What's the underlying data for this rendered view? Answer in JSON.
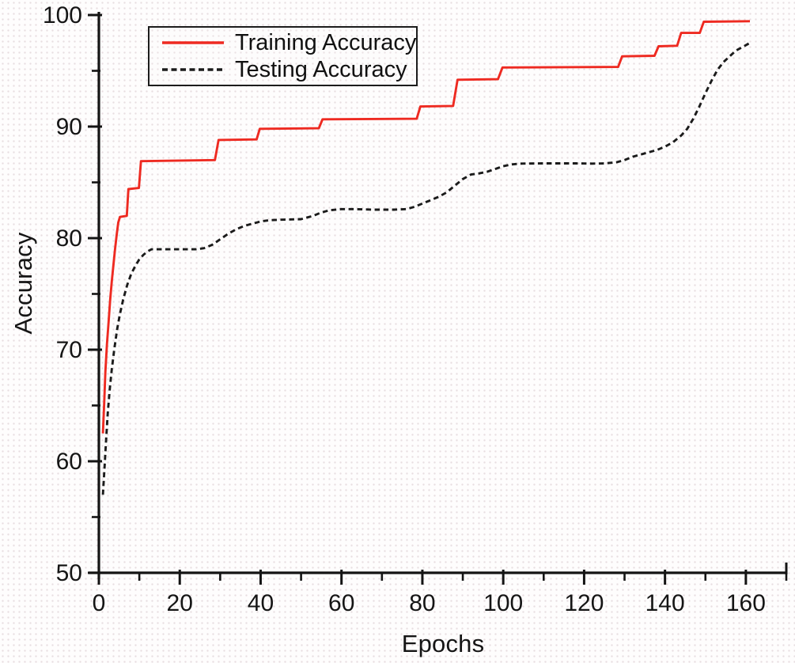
{
  "chart_data": {
    "type": "line",
    "title": "",
    "xlabel": "Epochs",
    "ylabel": "Accuracy",
    "xlim": [
      0,
      170
    ],
    "ylim": [
      50,
      100
    ],
    "grid": false,
    "x_major_ticks": [
      0,
      20,
      40,
      60,
      80,
      100,
      120,
      140,
      160
    ],
    "x_minor_ticks": [
      10,
      30,
      50,
      70,
      90,
      110,
      130,
      150,
      170
    ],
    "y_major_ticks": [
      50,
      60,
      70,
      80,
      90,
      100
    ],
    "y_minor_ticks": [
      55,
      65,
      75,
      85,
      95
    ],
    "axis_color": "#141414",
    "legend": {
      "position": "top-left",
      "items": [
        {
          "label": "Training Accuracy",
          "color": "#ee2a21",
          "style": "solid"
        },
        {
          "label": "Testing Accuracy",
          "color": "#1b1b1b",
          "style": "dashed"
        }
      ]
    },
    "series": [
      {
        "name": "Training Accuracy",
        "color": "#ee2a21",
        "style": "solid",
        "points": [
          [
            1,
            62.5
          ],
          [
            1.3,
            65
          ],
          [
            1.6,
            68
          ],
          [
            2,
            70.5
          ],
          [
            2.4,
            72.5
          ],
          [
            2.8,
            74.5
          ],
          [
            3.2,
            76.2
          ],
          [
            3.6,
            77.6
          ],
          [
            4,
            79
          ],
          [
            4.4,
            80.3
          ],
          [
            4.8,
            81.4
          ],
          [
            5.2,
            81.9
          ],
          [
            6.9,
            82
          ],
          [
            7.3,
            84.4
          ],
          [
            9.9,
            84.5
          ],
          [
            10.4,
            86.9
          ],
          [
            28.7,
            87
          ],
          [
            29.6,
            88.8
          ],
          [
            39,
            88.85
          ],
          [
            39.8,
            89.8
          ],
          [
            54.4,
            89.85
          ],
          [
            55.3,
            90.65
          ],
          [
            78.6,
            90.7
          ],
          [
            79.5,
            91.8
          ],
          [
            87.6,
            91.85
          ],
          [
            88.7,
            94.2
          ],
          [
            98.7,
            94.25
          ],
          [
            99.8,
            95.3
          ],
          [
            128.4,
            95.35
          ],
          [
            129.4,
            96.3
          ],
          [
            137.4,
            96.35
          ],
          [
            138.4,
            97.2
          ],
          [
            143,
            97.25
          ],
          [
            144,
            98.4
          ],
          [
            148.6,
            98.4
          ],
          [
            149.6,
            99.4
          ],
          [
            161,
            99.45
          ]
        ]
      },
      {
        "name": "Testing Accuracy",
        "color": "#1b1b1b",
        "style": "dashed",
        "points": [
          [
            1,
            57
          ],
          [
            1.4,
            59.5
          ],
          [
            1.8,
            62
          ],
          [
            2.2,
            64.3
          ],
          [
            2.7,
            66.5
          ],
          [
            3.2,
            68.3
          ],
          [
            3.8,
            70
          ],
          [
            4.5,
            71.8
          ],
          [
            5.2,
            73.2
          ],
          [
            6,
            74.5
          ],
          [
            7,
            75.8
          ],
          [
            8,
            76.8
          ],
          [
            9,
            77.5
          ],
          [
            10,
            78.1
          ],
          [
            11,
            78.5
          ],
          [
            12,
            78.8
          ],
          [
            13,
            79
          ],
          [
            24,
            79
          ],
          [
            26,
            79.1
          ],
          [
            28,
            79.4
          ],
          [
            30,
            79.9
          ],
          [
            32,
            80.4
          ],
          [
            34,
            80.8
          ],
          [
            36,
            81.1
          ],
          [
            38,
            81.3
          ],
          [
            40,
            81.5
          ],
          [
            42,
            81.6
          ],
          [
            45,
            81.65
          ],
          [
            50,
            81.7
          ],
          [
            53,
            82
          ],
          [
            55,
            82.3
          ],
          [
            57,
            82.5
          ],
          [
            60,
            82.6
          ],
          [
            63,
            82.6
          ],
          [
            68,
            82.55
          ],
          [
            73,
            82.55
          ],
          [
            76,
            82.6
          ],
          [
            78,
            82.8
          ],
          [
            80,
            83.1
          ],
          [
            82,
            83.4
          ],
          [
            84,
            83.7
          ],
          [
            86,
            84.1
          ],
          [
            88,
            84.7
          ],
          [
            90,
            85.3
          ],
          [
            92,
            85.7
          ],
          [
            94,
            85.8
          ],
          [
            96,
            85.95
          ],
          [
            98,
            86.2
          ],
          [
            100,
            86.45
          ],
          [
            102,
            86.6
          ],
          [
            104,
            86.68
          ],
          [
            110,
            86.7
          ],
          [
            118,
            86.7
          ],
          [
            122,
            86.68
          ],
          [
            125,
            86.7
          ],
          [
            128,
            86.8
          ],
          [
            130,
            87
          ],
          [
            132,
            87.3
          ],
          [
            134,
            87.5
          ],
          [
            136,
            87.7
          ],
          [
            138,
            87.9
          ],
          [
            140,
            88.2
          ],
          [
            142,
            88.6
          ],
          [
            144,
            89.2
          ],
          [
            145.5,
            89.8
          ],
          [
            147,
            90.7
          ],
          [
            148.5,
            91.8
          ],
          [
            150,
            93
          ],
          [
            151.5,
            94.1
          ],
          [
            153,
            95.1
          ],
          [
            154.5,
            95.8
          ],
          [
            156,
            96.3
          ],
          [
            157.5,
            96.8
          ],
          [
            159,
            97.1
          ],
          [
            160.5,
            97.4
          ],
          [
            161,
            97.5
          ]
        ]
      }
    ]
  }
}
